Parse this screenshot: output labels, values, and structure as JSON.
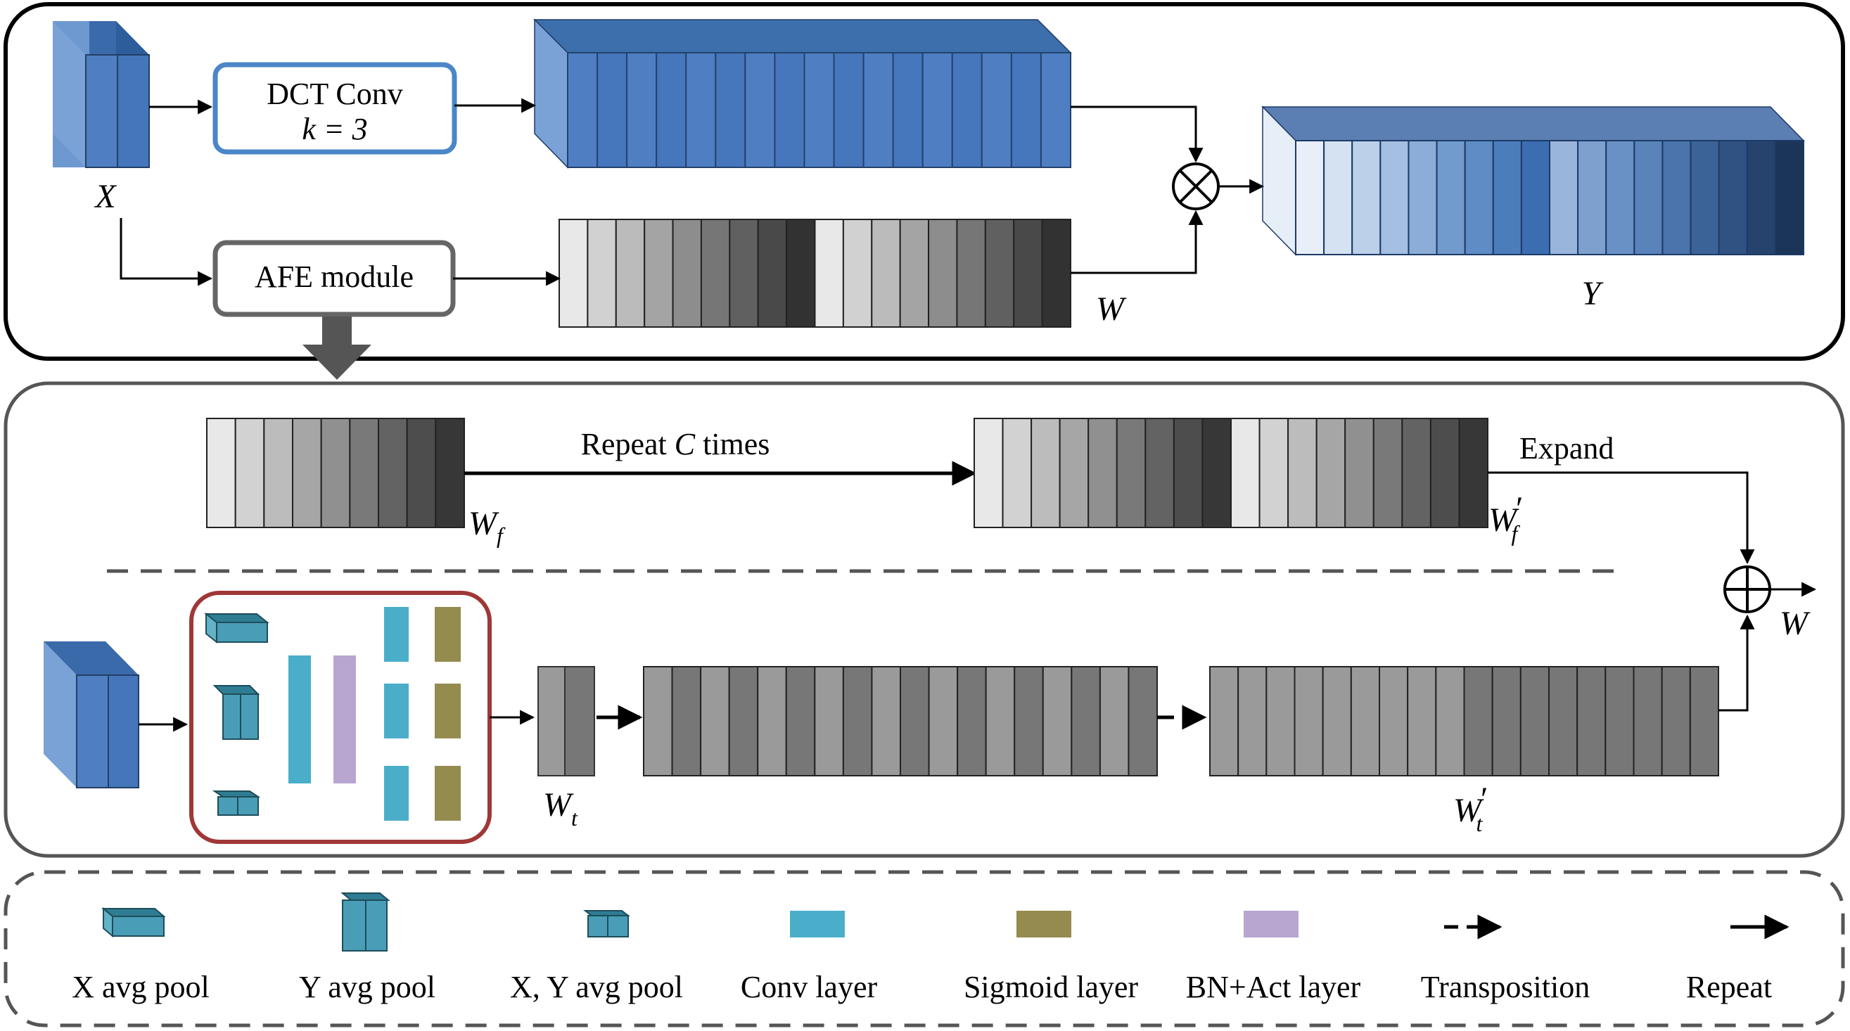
{
  "top_panel": {
    "input_label": "X",
    "dct_conv": {
      "title": "DCT Conv",
      "param": "k = 3"
    },
    "afe_module": "AFE module",
    "weight_label": "W",
    "output_label": "Y",
    "multiply_symbol": "⊗"
  },
  "afe_detail": {
    "repeat_label_prefix": "Repeat",
    "repeat_label_var": "C",
    "repeat_label_suffix": "times",
    "wf_label": {
      "base": "W",
      "sub": "f"
    },
    "wf_prime_label": {
      "base": "W",
      "sub": "f",
      "prime": "′"
    },
    "expand_label": "Expand",
    "wt_label": {
      "base": "W",
      "sub": "t"
    },
    "wt_prime_label": {
      "base": "W",
      "sub": "t",
      "prime": "′"
    },
    "output_label": "W",
    "add_symbol": "⊕"
  },
  "legend": {
    "items": [
      {
        "label": "X avg pool",
        "icon": "x-avg-pool-icon"
      },
      {
        "label": "Y avg pool",
        "icon": "y-avg-pool-icon"
      },
      {
        "label": "X, Y avg pool",
        "icon": "xy-avg-pool-icon"
      },
      {
        "label": "Conv layer",
        "icon": "conv-layer-icon"
      },
      {
        "label": "Sigmoid layer",
        "icon": "sigmoid-layer-icon"
      },
      {
        "label": "BN+Act layer",
        "icon": "bn-act-layer-icon"
      },
      {
        "label": "Transposition",
        "icon": "dashed-arrow-icon"
      },
      {
        "label": "Repeat",
        "icon": "solid-arrow-icon"
      }
    ]
  },
  "colors": {
    "blue_block": "#4a7bbf",
    "conv_layer": "#4aaecb",
    "sigmoid_layer": "#958b4f",
    "bn_act_layer": "#b8a5d0",
    "afe_frame": "#a03737",
    "panel_border": "#555555"
  }
}
